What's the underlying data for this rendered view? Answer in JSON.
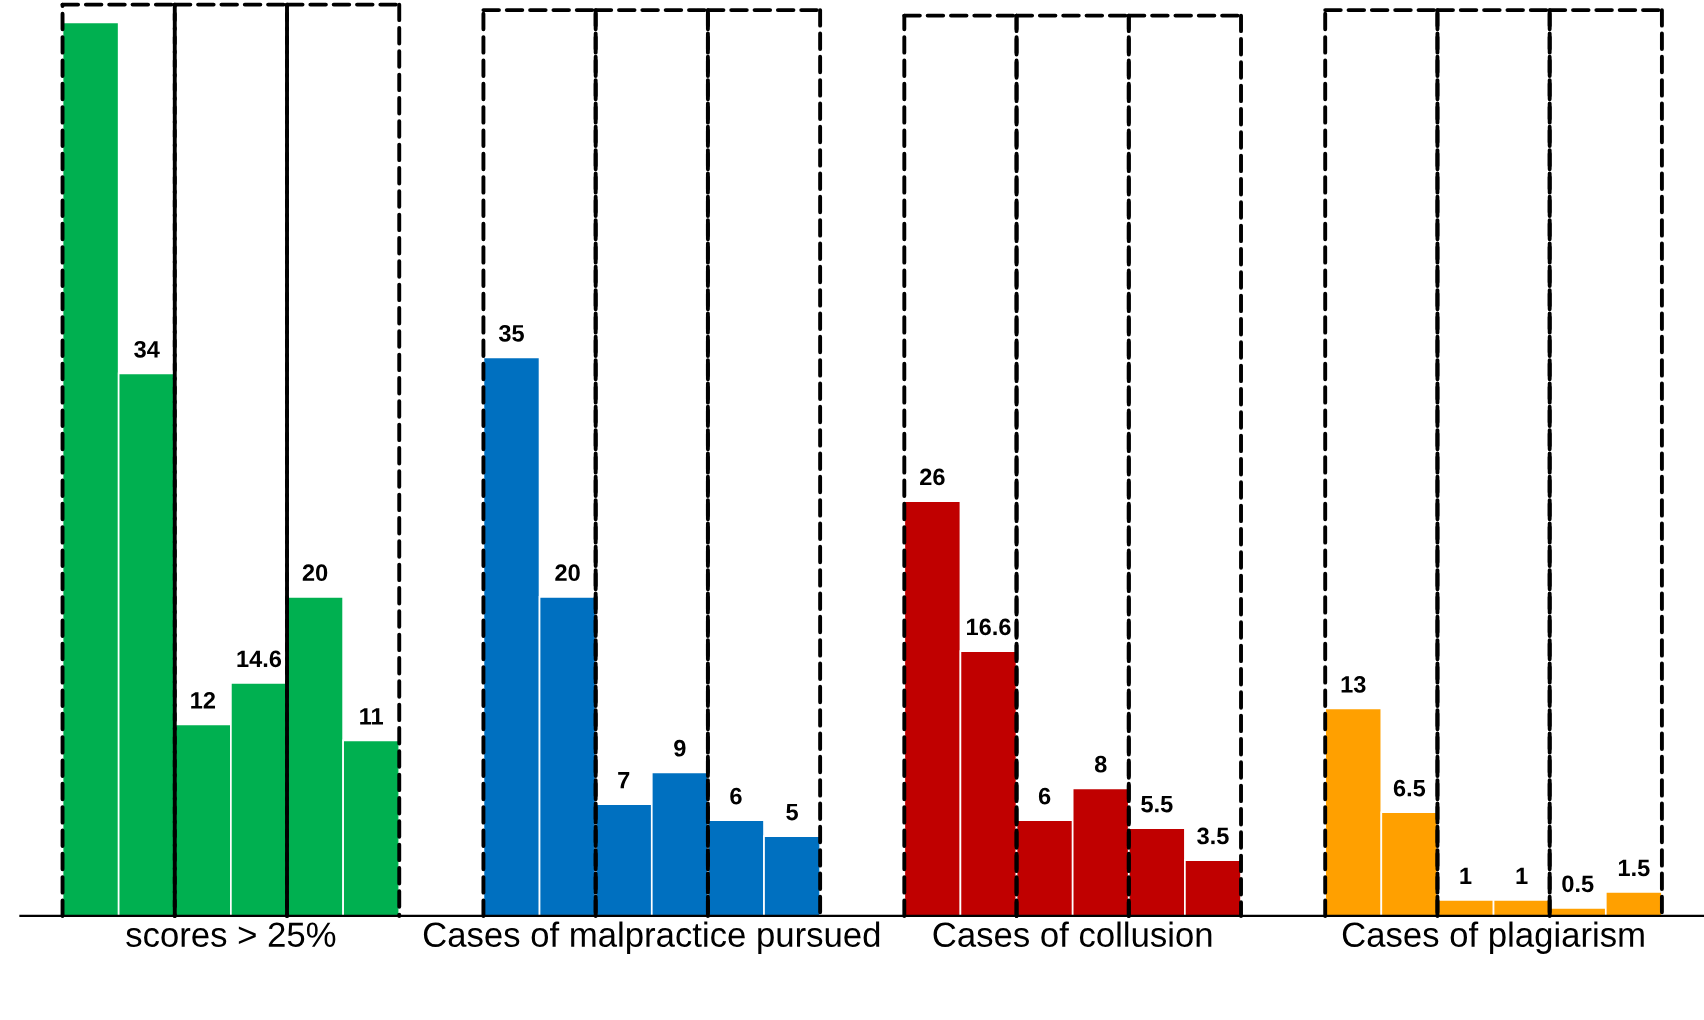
{
  "chart_data": {
    "type": "bar",
    "categories": [
      "scores > 25%",
      "Cases of malpractice pursued",
      "Cases of collusion",
      "Cases of plagiarism"
    ],
    "series": [
      {
        "colors": [
          "#00b050",
          "#0070c0",
          "#c00000",
          "#ffa000"
        ],
        "values": [
          56,
          35,
          26,
          13
        ],
        "value_labels": [
          null,
          "35",
          "26",
          "13"
        ]
      },
      {
        "colors": [
          "#00b050",
          "#0070c0",
          "#c00000",
          "#ffa000"
        ],
        "values": [
          34,
          20,
          16.6,
          6.5
        ],
        "value_labels": [
          "34",
          "20",
          "16.6",
          "6.5"
        ]
      },
      {
        "colors": [
          "#00b050",
          "#0070c0",
          "#c00000",
          "#ffa000"
        ],
        "values": [
          12,
          7,
          6,
          1
        ],
        "value_labels": [
          "12",
          "7",
          "6",
          "1"
        ]
      },
      {
        "colors": [
          "#00b050",
          "#0070c0",
          "#c00000",
          "#ffa000"
        ],
        "values": [
          14.6,
          9,
          8,
          1
        ],
        "value_labels": [
          "14.6",
          "9",
          "8",
          "1"
        ]
      },
      {
        "colors": [
          "#00b050",
          "#0070c0",
          "#c00000",
          "#ffa000"
        ],
        "values": [
          20,
          6,
          5.5,
          0.5
        ],
        "value_labels": [
          "20",
          "6",
          "5.5",
          "0.5"
        ]
      },
      {
        "colors": [
          "#00b050",
          "#0070c0",
          "#c00000",
          "#ffa000"
        ],
        "values": [
          11,
          5,
          3.5,
          1.5
        ],
        "value_labels": [
          "11",
          "5",
          "3.5",
          "1.5"
        ]
      }
    ],
    "grid": false,
    "legend": false
  }
}
